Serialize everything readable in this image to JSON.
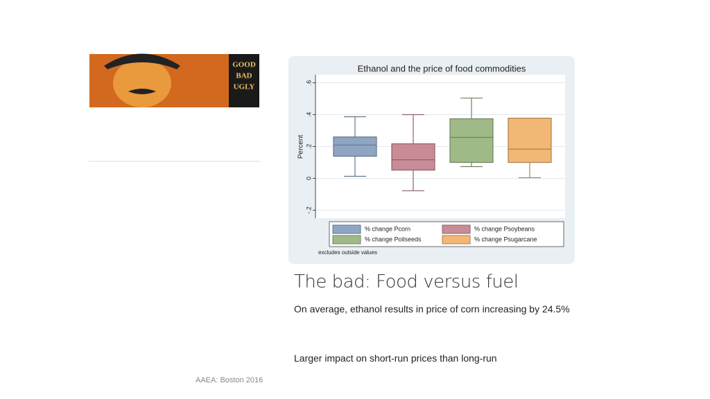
{
  "image": {
    "labels": [
      "GOOD",
      "BAD",
      "UGLY"
    ]
  },
  "chart_data": {
    "type": "box",
    "title": "Ethanol and the price of food commodities",
    "ylabel": "Percent",
    "note": "excludes outside values",
    "ylim": [
      -0.25,
      0.65
    ],
    "yticks": [
      {
        "value": -0.2,
        "label": "-.2"
      },
      0,
      {
        "value": 0.2,
        "label": ".2"
      },
      {
        "value": 0.4,
        "label": ".4"
      },
      {
        "value": 0.6,
        "label": ".6"
      }
    ],
    "grid": true,
    "series": [
      {
        "name": "% change Pcorn",
        "color": "#8ea6c4",
        "low": 0.013,
        "q1": 0.139,
        "median": 0.209,
        "q3": 0.26,
        "high": 0.387
      },
      {
        "name": "% change Psoybeans",
        "color": "#c98c96",
        "low": -0.078,
        "q1": 0.052,
        "median": 0.117,
        "q3": 0.217,
        "high": 0.4
      },
      {
        "name": "% change Poilseeds",
        "color": "#9fba88",
        "low": 0.074,
        "q1": 0.1,
        "median": 0.257,
        "q3": 0.374,
        "high": 0.504
      },
      {
        "name": "% change Psugarcane",
        "color": "#f2b774",
        "low": 0.004,
        "q1": 0.1,
        "median": 0.183,
        "q3": 0.378,
        "high": 0.378
      }
    ]
  },
  "slide": {
    "heading": "The bad: Food versus fuel",
    "paragraphs": [
      "On average, ethanol results in price of corn increasing by 24.5%",
      "Larger impact on short-run prices than long-run"
    ],
    "footer": "AAEA: Boston 2016"
  }
}
